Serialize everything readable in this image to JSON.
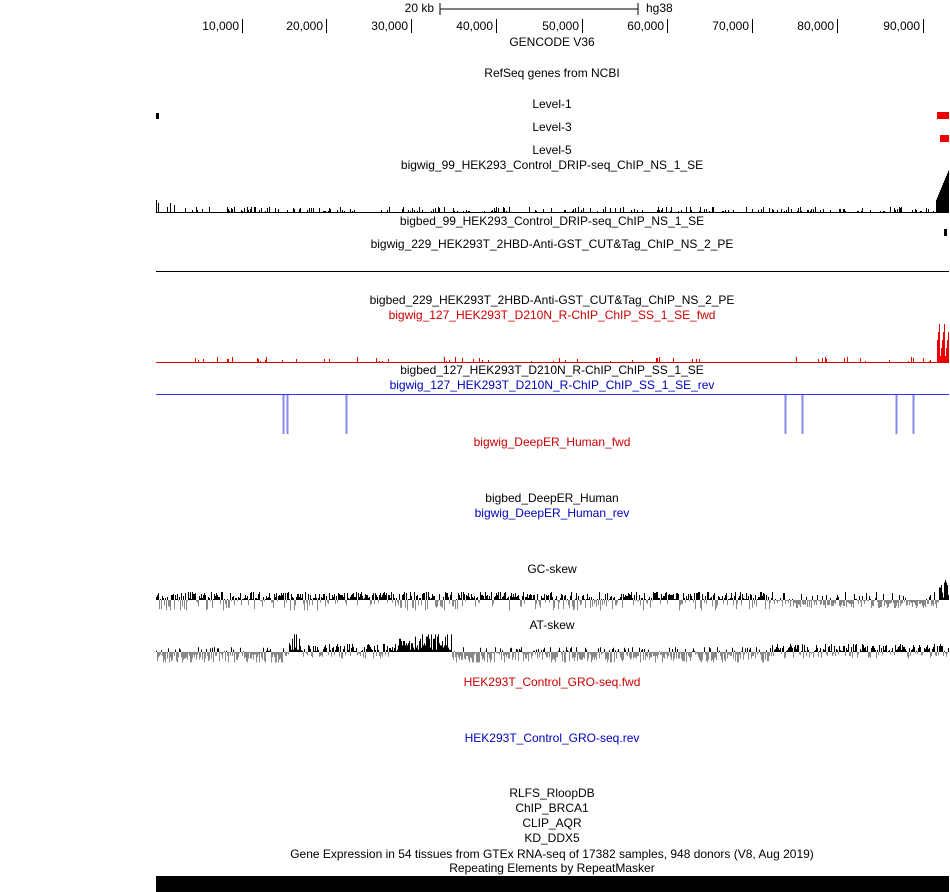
{
  "header": {
    "scale_label": "20 kb",
    "assembly": "hg38"
  },
  "ruler": {
    "ticks": [
      "10,000",
      "20,000",
      "30,000",
      "40,000",
      "50,000",
      "60,000",
      "70,000",
      "80,000",
      "90,000"
    ]
  },
  "tracks": [
    {
      "label": "GENCODE V36",
      "color": "#000000"
    },
    {
      "label": "RefSeq genes from NCBI",
      "color": "#000000"
    },
    {
      "label": "Level-1",
      "color": "#000000"
    },
    {
      "label": "Level-3",
      "color": "#000000"
    },
    {
      "label": "Level-5",
      "color": "#000000"
    },
    {
      "label": "bigwig_99_HEK293_Control_DRIP-seq_ChIP_NS_1_SE",
      "color": "#000000"
    },
    {
      "label": "bigbed_99_HEK293_Control_DRIP-seq_ChIP_NS_1_SE",
      "color": "#000000"
    },
    {
      "label": "bigwig_229_HEK293T_2HBD-Anti-GST_CUT&Tag_ChIP_NS_2_PE",
      "color": "#000000"
    },
    {
      "label": "bigbed_229_HEK293T_2HBD-Anti-GST_CUT&Tag_ChIP_NS_2_PE",
      "color": "#000000"
    },
    {
      "label": "bigwig_127_HEK293T_D210N_R-ChIP_ChIP_SS_1_SE_fwd",
      "color": "#cc0000"
    },
    {
      "label": "bigbed_127_HEK293T_D210N_R-ChIP_ChIP_SS_1_SE",
      "color": "#000000"
    },
    {
      "label": "bigwig_127_HEK293T_D210N_R-ChIP_ChIP_SS_1_SE_rev",
      "color": "#0000bb"
    },
    {
      "label": "bigwig_DeepER_Human_fwd",
      "color": "#cc0000"
    },
    {
      "label": "bigbed_DeepER_Human",
      "color": "#000000"
    },
    {
      "label": "bigwig_DeepER_Human_rev",
      "color": "#0000bb"
    },
    {
      "label": "GC-skew",
      "color": "#000000"
    },
    {
      "label": "AT-skew",
      "color": "#000000"
    },
    {
      "label": "HEK293T_Control_GRO-seq.fwd",
      "color": "#cc0000"
    },
    {
      "label": "HEK293T_Control_GRO-seq.rev",
      "color": "#0000bb"
    },
    {
      "label": "RLFS_RloopDB",
      "color": "#000000"
    },
    {
      "label": "ChIP_BRCA1",
      "color": "#000000"
    },
    {
      "label": "CLIP_AQR",
      "color": "#000000"
    },
    {
      "label": "KD_DDX5",
      "color": "#000000"
    },
    {
      "label": "Gene Expression in 54 tissues from GTEx RNA-seq of 17382 samples, 948 donors (V8, Aug 2019)",
      "color": "#000000"
    },
    {
      "label": "Repeating Elements by RepeatMasker",
      "color": "#000000"
    }
  ]
}
